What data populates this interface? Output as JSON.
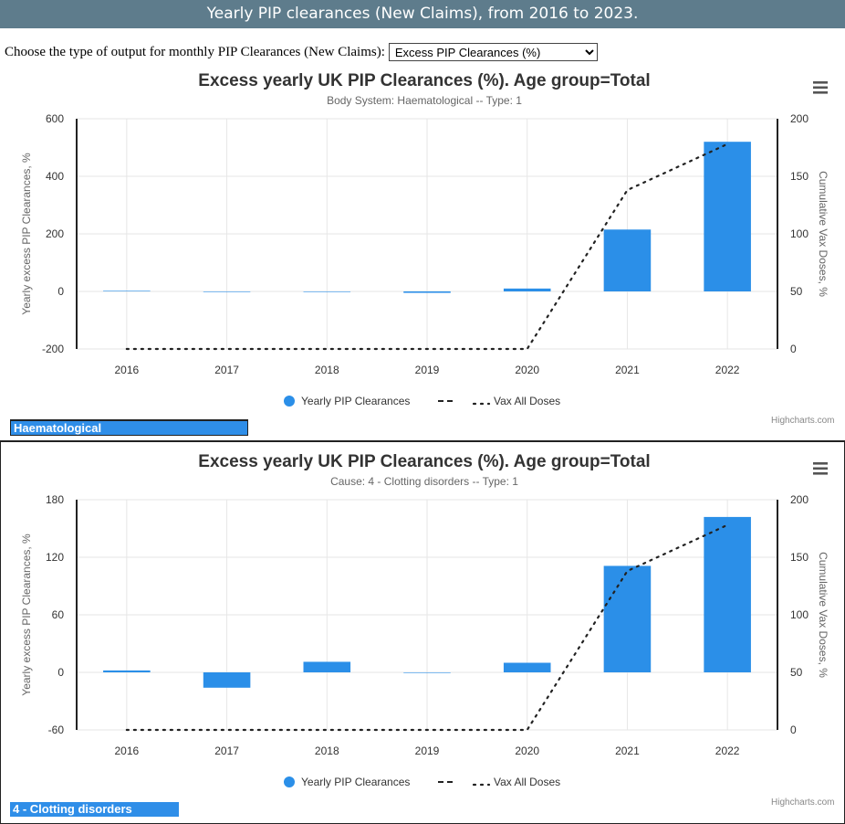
{
  "header": {
    "title": "Yearly PIP clearances (New Claims), from 2016 to 2023."
  },
  "controls": {
    "label": "Choose the type of output for monthly PIP Clearances (New Claims):",
    "selected": "Excess PIP Clearances (%)"
  },
  "colors": {
    "bar": "#2b8fe8",
    "banner": "#5e7c8c",
    "label_bar": "#2f8ee8"
  },
  "charts": [
    {
      "title": "Excess yearly UK PIP Clearances (%). Age group=Total",
      "subtitle": "Body System: Haematological -- Type: 1",
      "label_bar": "Haematological",
      "credit": "Highcharts.com",
      "menu_icon": "hamburger-menu-icon"
    },
    {
      "title": "Excess yearly UK PIP Clearances (%). Age group=Total",
      "subtitle": "Cause: 4 - Clotting disorders -- Type: 1",
      "label_bar": "4 - Clotting disorders",
      "credit": "Highcharts.com",
      "menu_icon": "hamburger-menu-icon"
    }
  ],
  "chart_data": [
    {
      "type": "bar",
      "title": "Excess yearly UK PIP Clearances (%). Age group=Total",
      "subtitle": "Body System: Haematological -- Type: 1",
      "categories": [
        "2016",
        "2017",
        "2018",
        "2019",
        "2020",
        "2021",
        "2022"
      ],
      "ylabel": "Yearly excess PIP Clearances, %",
      "ylim": [
        -200,
        600
      ],
      "yticks": [
        -200,
        0,
        200,
        400,
        600
      ],
      "y2label": "Cumulative Vax Doses, %",
      "y2lim": [
        0,
        200
      ],
      "y2ticks": [
        0,
        50,
        100,
        150,
        200
      ],
      "grid": true,
      "legend_position": "bottom",
      "series": [
        {
          "name": "Yearly PIP Clearances",
          "type": "bar",
          "axis": "left",
          "values": [
            2,
            0,
            0,
            -5,
            10,
            215,
            520
          ]
        },
        {
          "name": "Vax All Doses",
          "type": "line",
          "axis": "right",
          "values": [
            0,
            0,
            0,
            0,
            0,
            138,
            178
          ]
        }
      ]
    },
    {
      "type": "bar",
      "title": "Excess yearly UK PIP Clearances (%). Age group=Total",
      "subtitle": "Cause: 4 - Clotting disorders -- Type: 1",
      "categories": [
        "2016",
        "2017",
        "2018",
        "2019",
        "2020",
        "2021",
        "2022"
      ],
      "ylabel": "Yearly excess PIP Clearances, %",
      "ylim": [
        -60,
        180
      ],
      "yticks": [
        -60,
        0,
        60,
        120,
        180
      ],
      "y2label": "Cumulative Vax Doses, %",
      "y2lim": [
        0,
        200
      ],
      "y2ticks": [
        0,
        50,
        100,
        150,
        200
      ],
      "grid": true,
      "legend_position": "bottom",
      "series": [
        {
          "name": "Yearly PIP Clearances",
          "type": "bar",
          "axis": "left",
          "values": [
            2,
            -16,
            11,
            0,
            10,
            111,
            162
          ]
        },
        {
          "name": "Vax All Doses",
          "type": "line",
          "axis": "right",
          "values": [
            0,
            0,
            0,
            0,
            0,
            138,
            178
          ]
        }
      ]
    }
  ]
}
